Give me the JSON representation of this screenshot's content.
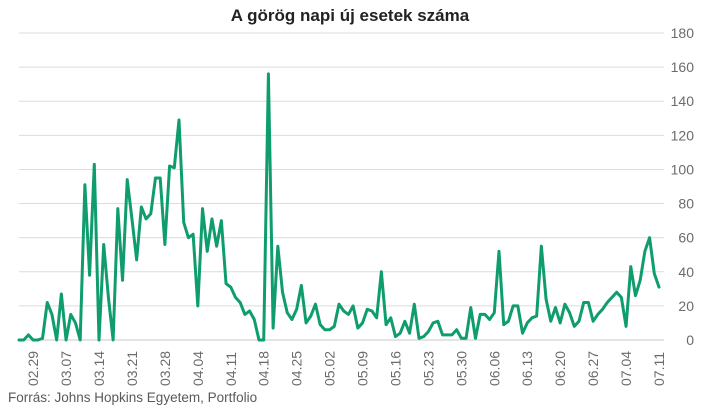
{
  "title": "A görög napi új esetek száma",
  "source": "Forrás: Johns Hopkins Egyetem, Portfolio",
  "colors": {
    "line": "#0f9d6e",
    "grid": "#dcdcdc",
    "tick_text": "#6b6b6b"
  },
  "chart_data": {
    "type": "line",
    "title": "A görög napi új esetek száma",
    "xlabel": "",
    "ylabel": "",
    "ylim": [
      0,
      180
    ],
    "yticks": [
      0,
      20,
      40,
      60,
      80,
      100,
      120,
      140,
      160,
      180
    ],
    "y_axis_side": "right",
    "grid": true,
    "x_tick_labels": [
      "02.29",
      "03.07",
      "03.14",
      "03.21",
      "03.28",
      "04.04",
      "04.11",
      "04.18",
      "04.25",
      "05.02",
      "05.09",
      "05.16",
      "05.23",
      "05.30",
      "06.06",
      "06.13",
      "06.20",
      "06.27",
      "07.04",
      "07.11"
    ],
    "start_date": "02.26",
    "series": [
      {
        "values": [
          0,
          0,
          3,
          0,
          0,
          1,
          22,
          15,
          0,
          27,
          0,
          15,
          10,
          0,
          91,
          38,
          103,
          0,
          56,
          25,
          0,
          77,
          35,
          94,
          71,
          47,
          78,
          71,
          74,
          95,
          95,
          56,
          102,
          101,
          129,
          69,
          60,
          62,
          20,
          77,
          52,
          71,
          55,
          70,
          33,
          31,
          25,
          22,
          15,
          17,
          12,
          0,
          0,
          156,
          7,
          55,
          28,
          16,
          12,
          18,
          32,
          10,
          14,
          21,
          9,
          6,
          6,
          8,
          21,
          17,
          15,
          20,
          7,
          10,
          18,
          17,
          13,
          40,
          9,
          13,
          2,
          4,
          11,
          4,
          21,
          1,
          2,
          5,
          10,
          11,
          3,
          3,
          3,
          6,
          1,
          1,
          19,
          1,
          15,
          15,
          12,
          16,
          52,
          9,
          11,
          20,
          20,
          4,
          10,
          13,
          14,
          55,
          24,
          11,
          19,
          10,
          21,
          16,
          8,
          11,
          22,
          22,
          11,
          15,
          18,
          22,
          25,
          28,
          25,
          8,
          43,
          26,
          35,
          52,
          60,
          39,
          31
        ]
      }
    ]
  }
}
